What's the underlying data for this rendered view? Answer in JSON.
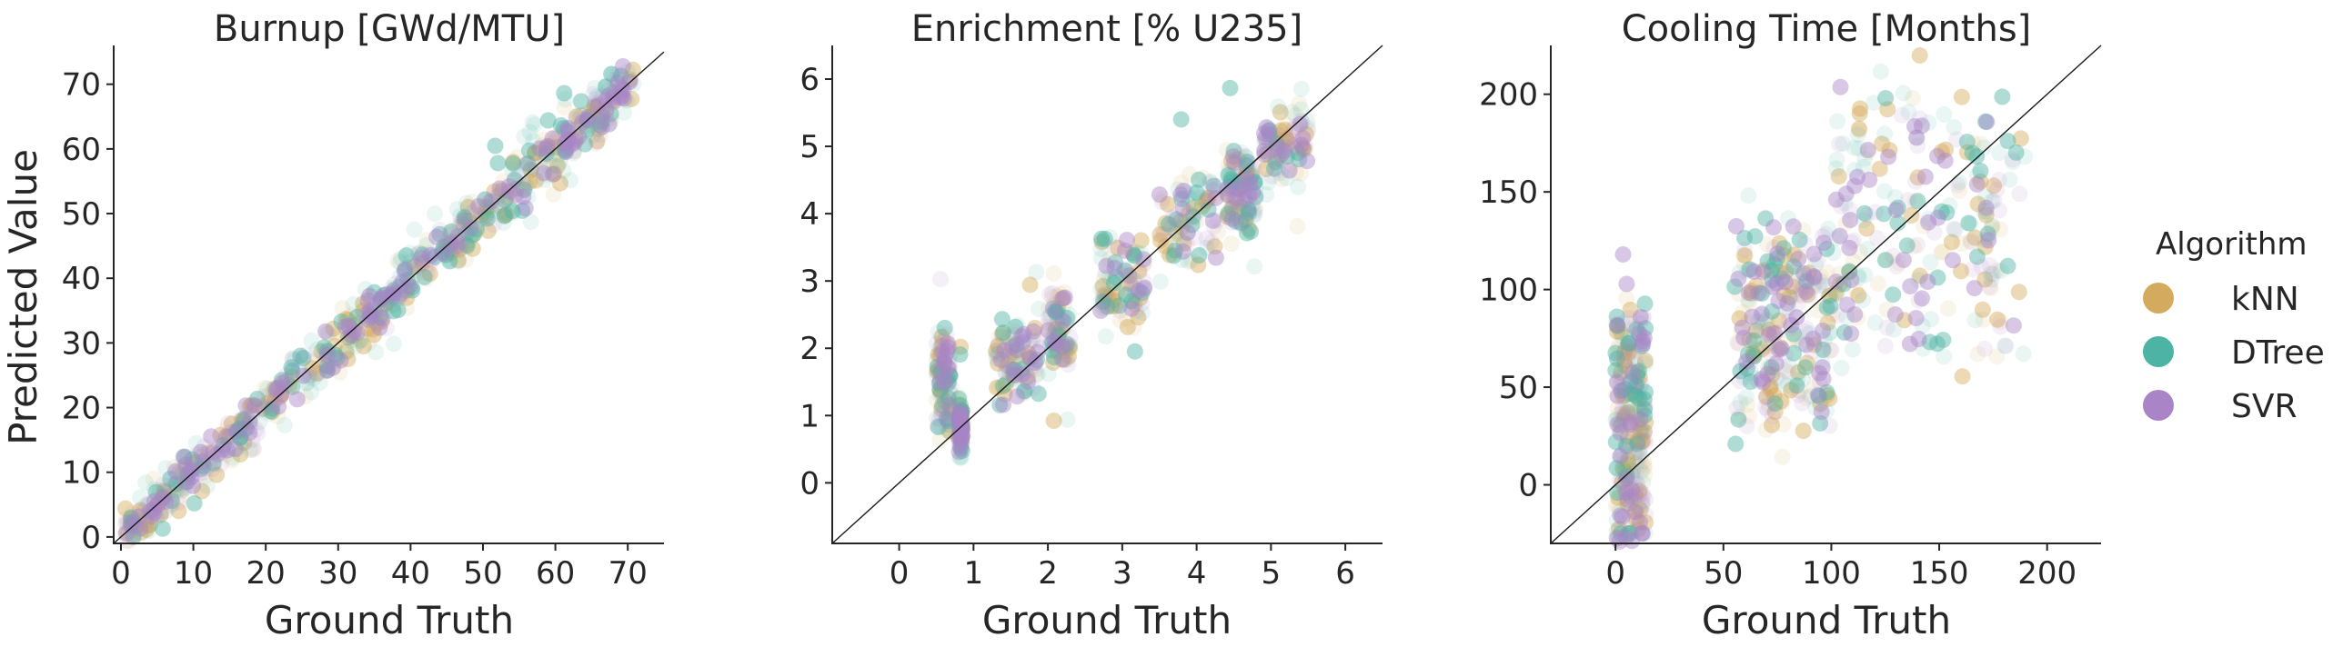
{
  "chart_data": [
    {
      "type": "scatter",
      "title": "Burnup [GWd/MTU]",
      "xlabel": "Ground Truth",
      "ylabel": "Predicted Value",
      "xlim": [
        -1,
        75
      ],
      "ylim": [
        -1,
        76
      ],
      "xticks": [
        0,
        10,
        20,
        30,
        40,
        50,
        60,
        70
      ],
      "yticks": [
        0,
        10,
        20,
        30,
        40,
        50,
        60,
        70
      ],
      "reference_line": "y = x",
      "truth_range": [
        0.5,
        71
      ],
      "series": [
        {
          "name": "kNN",
          "noise_sd": 2.2,
          "outlier_rate": 0.03,
          "outlier_spread": 6
        },
        {
          "name": "DTree",
          "noise_sd": 2.6,
          "outlier_rate": 0.04,
          "outlier_spread": 7
        },
        {
          "name": "SVR",
          "noise_sd": 1.6,
          "outlier_rate": 0.02,
          "outlier_spread": 5
        }
      ]
    },
    {
      "type": "scatter",
      "title": "Enrichment [% U235]",
      "xlabel": "Ground Truth",
      "ylabel": "",
      "xlim": [
        -0.9,
        6.5
      ],
      "ylim": [
        -0.9,
        6.5
      ],
      "xticks": [
        0,
        1,
        2,
        3,
        4,
        5,
        6
      ],
      "yticks": [
        0,
        1,
        2,
        3,
        4,
        5,
        6
      ],
      "reference_line": "y = x",
      "truth_clusters": [
        {
          "x": [
            0.5,
            0.7
          ],
          "y_center": 1.5,
          "y_spread": 1.3
        },
        {
          "x": [
            0.8,
            0.85
          ],
          "y_center": 0.8,
          "y_spread": 0.3
        },
        {
          "x": [
            1.3,
            1.9
          ],
          "y_center": 1.8,
          "y_spread": 0.7
        },
        {
          "x": [
            2.0,
            2.3
          ],
          "y_center": 2.3,
          "y_spread": 0.9
        },
        {
          "x": [
            2.7,
            3.3
          ],
          "y_center": 3.0,
          "y_spread": 1.1
        },
        {
          "x": [
            3.5,
            4.3
          ],
          "y_center": 3.9,
          "y_spread": 1.1
        },
        {
          "x": [
            4.4,
            4.8
          ],
          "y_center": 4.4,
          "y_spread": 1.0
        },
        {
          "x": [
            4.9,
            5.5
          ],
          "y_center": 5.0,
          "y_spread": 0.6
        }
      ],
      "series": [
        {
          "name": "kNN",
          "noise_sd": 0.45,
          "outlier_rate": 0.03,
          "outlier_spread": 1.5
        },
        {
          "name": "DTree",
          "noise_sd": 0.5,
          "outlier_rate": 0.05,
          "outlier_spread": 1.8
        },
        {
          "name": "SVR",
          "noise_sd": 0.3,
          "outlier_rate": 0.02,
          "outlier_spread": 1.0
        }
      ]
    },
    {
      "type": "scatter",
      "title": "Cooling Time [Months]",
      "xlabel": "Ground Truth",
      "ylabel": "",
      "xlim": [
        -30,
        225
      ],
      "ylim": [
        -30,
        225
      ],
      "xticks": [
        0,
        50,
        100,
        150,
        200
      ],
      "yticks": [
        0,
        50,
        100,
        150,
        200
      ],
      "reference_line": "y = x",
      "truth_clusters": [
        {
          "x": [
            0,
            14
          ],
          "y_center": 30,
          "y_spread": 110
        },
        {
          "x": [
            55,
            100
          ],
          "y_center": 80,
          "y_spread": 90
        },
        {
          "x": [
            100,
            190
          ],
          "y_center": 130,
          "y_spread": 120
        }
      ],
      "series": [
        {
          "name": "kNN",
          "noise_sd": 30,
          "outlier_rate": 0.05,
          "outlier_spread": 60
        },
        {
          "name": "DTree",
          "noise_sd": 35,
          "outlier_rate": 0.06,
          "outlier_spread": 70
        },
        {
          "name": "SVR",
          "noise_sd": 18,
          "outlier_rate": 0.03,
          "outlier_spread": 40
        }
      ]
    }
  ],
  "legend": {
    "title": "Algorithm",
    "placement": "right",
    "entries": [
      {
        "name": "kNN",
        "color": "#d4aa5e"
      },
      {
        "name": "DTree",
        "color": "#4db3a4"
      },
      {
        "name": "SVR",
        "color": "#a985c7"
      }
    ]
  }
}
